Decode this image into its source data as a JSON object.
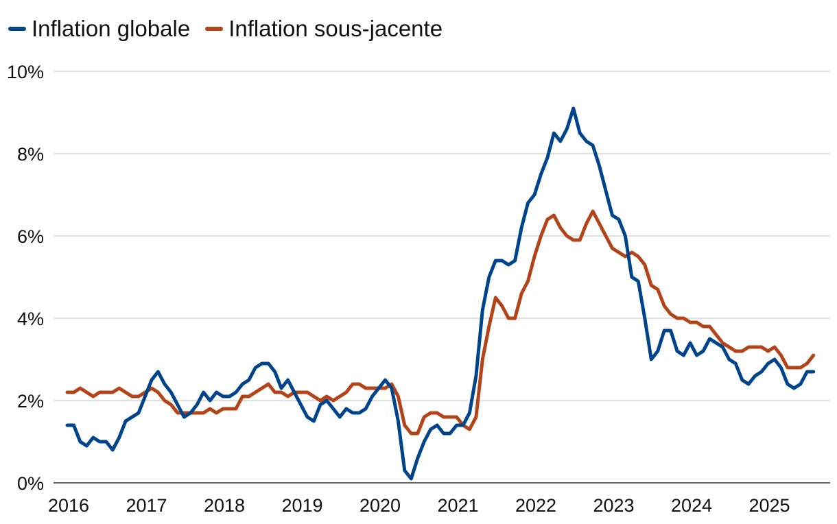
{
  "colors": {
    "series0": "#00458c",
    "series1": "#b3441a",
    "grid": "#cccccc",
    "axis": "#333333"
  },
  "chart_data": {
    "type": "line",
    "title": "",
    "xlabel": "",
    "ylabel": "",
    "ylim": [
      0,
      10
    ],
    "xlim": [
      "2016-01",
      "2025-08"
    ],
    "y_ticks": [
      0,
      2,
      4,
      6,
      8,
      10
    ],
    "y_tick_labels": [
      "0%",
      "2%",
      "4%",
      "6%",
      "8%",
      "10%"
    ],
    "x_tick_labels": [
      "2016",
      "2017",
      "2018",
      "2019",
      "2020",
      "2021",
      "2022",
      "2023",
      "2024",
      "2025"
    ],
    "grid": "horizontal",
    "legend_position": "top-left",
    "series": [
      {
        "name": "Inflation globale",
        "x": [
          "2016-01",
          "2016-02",
          "2016-03",
          "2016-04",
          "2016-05",
          "2016-06",
          "2016-07",
          "2016-08",
          "2016-09",
          "2016-10",
          "2016-11",
          "2016-12",
          "2017-01",
          "2017-02",
          "2017-03",
          "2017-04",
          "2017-05",
          "2017-06",
          "2017-07",
          "2017-08",
          "2017-09",
          "2017-10",
          "2017-11",
          "2017-12",
          "2018-01",
          "2018-02",
          "2018-03",
          "2018-04",
          "2018-05",
          "2018-06",
          "2018-07",
          "2018-08",
          "2018-09",
          "2018-10",
          "2018-11",
          "2018-12",
          "2019-01",
          "2019-02",
          "2019-03",
          "2019-04",
          "2019-05",
          "2019-06",
          "2019-07",
          "2019-08",
          "2019-09",
          "2019-10",
          "2019-11",
          "2019-12",
          "2020-01",
          "2020-02",
          "2020-03",
          "2020-04",
          "2020-05",
          "2020-06",
          "2020-07",
          "2020-08",
          "2020-09",
          "2020-10",
          "2020-11",
          "2020-12",
          "2021-01",
          "2021-02",
          "2021-03",
          "2021-04",
          "2021-05",
          "2021-06",
          "2021-07",
          "2021-08",
          "2021-09",
          "2021-10",
          "2021-11",
          "2021-12",
          "2022-01",
          "2022-02",
          "2022-03",
          "2022-04",
          "2022-05",
          "2022-06",
          "2022-07",
          "2022-08",
          "2022-09",
          "2022-10",
          "2022-11",
          "2022-12",
          "2023-01",
          "2023-02",
          "2023-03",
          "2023-04",
          "2023-05",
          "2023-06",
          "2023-07",
          "2023-08",
          "2023-09",
          "2023-10",
          "2023-11",
          "2023-12",
          "2024-01",
          "2024-02",
          "2024-03",
          "2024-04",
          "2024-05",
          "2024-06",
          "2024-07",
          "2024-08",
          "2024-09",
          "2024-10",
          "2024-11",
          "2024-12",
          "2025-01",
          "2025-02",
          "2025-03",
          "2025-04",
          "2025-05",
          "2025-06",
          "2025-07",
          "2025-08"
        ],
        "values": [
          1.4,
          1.4,
          1.0,
          0.9,
          1.1,
          1.0,
          1.0,
          0.8,
          1.1,
          1.5,
          1.6,
          1.7,
          2.1,
          2.5,
          2.7,
          2.4,
          2.2,
          1.9,
          1.6,
          1.7,
          1.9,
          2.2,
          2.0,
          2.2,
          2.1,
          2.1,
          2.2,
          2.4,
          2.5,
          2.8,
          2.9,
          2.9,
          2.7,
          2.3,
          2.5,
          2.2,
          1.9,
          1.6,
          1.5,
          1.9,
          2.0,
          1.8,
          1.6,
          1.8,
          1.7,
          1.7,
          1.8,
          2.1,
          2.3,
          2.5,
          2.3,
          1.5,
          0.3,
          0.1,
          0.6,
          1.0,
          1.3,
          1.4,
          1.2,
          1.2,
          1.4,
          1.4,
          1.7,
          2.6,
          4.2,
          5.0,
          5.4,
          5.4,
          5.3,
          5.4,
          6.2,
          6.8,
          7.0,
          7.5,
          7.9,
          8.5,
          8.3,
          8.6,
          9.1,
          8.5,
          8.3,
          8.2,
          7.7,
          7.1,
          6.5,
          6.4,
          6.0,
          5.0,
          4.9,
          4.0,
          3.0,
          3.2,
          3.7,
          3.7,
          3.2,
          3.1,
          3.4,
          3.1,
          3.2,
          3.5,
          3.4,
          3.3,
          3.0,
          2.9,
          2.5,
          2.4,
          2.6,
          2.7,
          2.9,
          3.0,
          2.8,
          2.4,
          2.3,
          2.4,
          2.7,
          2.7
        ]
      },
      {
        "name": "Inflation sous-jacente",
        "x": [
          "2016-01",
          "2016-02",
          "2016-03",
          "2016-04",
          "2016-05",
          "2016-06",
          "2016-07",
          "2016-08",
          "2016-09",
          "2016-10",
          "2016-11",
          "2016-12",
          "2017-01",
          "2017-02",
          "2017-03",
          "2017-04",
          "2017-05",
          "2017-06",
          "2017-07",
          "2017-08",
          "2017-09",
          "2017-10",
          "2017-11",
          "2017-12",
          "2018-01",
          "2018-02",
          "2018-03",
          "2018-04",
          "2018-05",
          "2018-06",
          "2018-07",
          "2018-08",
          "2018-09",
          "2018-10",
          "2018-11",
          "2018-12",
          "2019-01",
          "2019-02",
          "2019-03",
          "2019-04",
          "2019-05",
          "2019-06",
          "2019-07",
          "2019-08",
          "2019-09",
          "2019-10",
          "2019-11",
          "2019-12",
          "2020-01",
          "2020-02",
          "2020-03",
          "2020-04",
          "2020-05",
          "2020-06",
          "2020-07",
          "2020-08",
          "2020-09",
          "2020-10",
          "2020-11",
          "2020-12",
          "2021-01",
          "2021-02",
          "2021-03",
          "2021-04",
          "2021-05",
          "2021-06",
          "2021-07",
          "2021-08",
          "2021-09",
          "2021-10",
          "2021-11",
          "2021-12",
          "2022-01",
          "2022-02",
          "2022-03",
          "2022-04",
          "2022-05",
          "2022-06",
          "2022-07",
          "2022-08",
          "2022-09",
          "2022-10",
          "2022-11",
          "2022-12",
          "2023-01",
          "2023-02",
          "2023-03",
          "2023-04",
          "2023-05",
          "2023-06",
          "2023-07",
          "2023-08",
          "2023-09",
          "2023-10",
          "2023-11",
          "2023-12",
          "2024-01",
          "2024-02",
          "2024-03",
          "2024-04",
          "2024-05",
          "2024-06",
          "2024-07",
          "2024-08",
          "2024-09",
          "2024-10",
          "2024-11",
          "2024-12",
          "2025-01",
          "2025-02",
          "2025-03",
          "2025-04",
          "2025-05",
          "2025-06",
          "2025-07",
          "2025-08"
        ],
        "values": [
          2.2,
          2.2,
          2.3,
          2.2,
          2.1,
          2.2,
          2.2,
          2.2,
          2.3,
          2.2,
          2.1,
          2.1,
          2.2,
          2.3,
          2.2,
          2.0,
          1.9,
          1.7,
          1.7,
          1.7,
          1.7,
          1.7,
          1.8,
          1.7,
          1.8,
          1.8,
          1.8,
          2.1,
          2.1,
          2.2,
          2.3,
          2.4,
          2.2,
          2.2,
          2.1,
          2.2,
          2.2,
          2.2,
          2.1,
          2.0,
          2.1,
          2.0,
          2.1,
          2.2,
          2.4,
          2.4,
          2.3,
          2.3,
          2.3,
          2.3,
          2.4,
          2.1,
          1.4,
          1.2,
          1.2,
          1.6,
          1.7,
          1.7,
          1.6,
          1.6,
          1.6,
          1.4,
          1.3,
          1.6,
          3.0,
          3.8,
          4.5,
          4.3,
          4.0,
          4.0,
          4.6,
          4.9,
          5.5,
          6.0,
          6.4,
          6.5,
          6.2,
          6.0,
          5.9,
          5.9,
          6.3,
          6.6,
          6.3,
          6.0,
          5.7,
          5.6,
          5.5,
          5.6,
          5.5,
          5.3,
          4.8,
          4.7,
          4.3,
          4.1,
          4.0,
          4.0,
          3.9,
          3.9,
          3.8,
          3.8,
          3.6,
          3.4,
          3.3,
          3.2,
          3.2,
          3.3,
          3.3,
          3.3,
          3.2,
          3.3,
          3.1,
          2.8,
          2.8,
          2.8,
          2.9,
          3.1
        ]
      }
    ]
  }
}
